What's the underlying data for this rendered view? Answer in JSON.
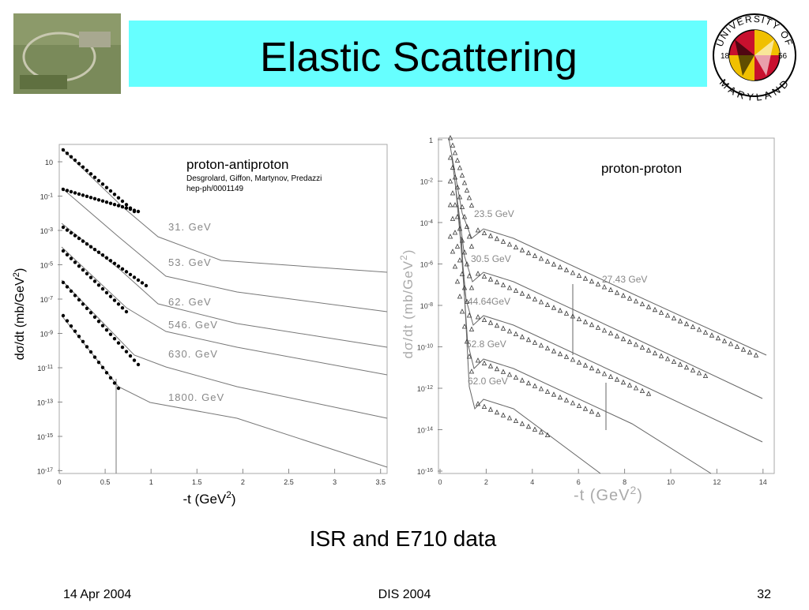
{
  "header": {
    "title": "Elastic Scattering",
    "logo": {
      "top": "UNIVERSITY OF",
      "bottom": "MARYLAND",
      "left": "18",
      "right": "56"
    }
  },
  "left_plot": {
    "heading": "proton-antiproton",
    "authors": "Desgrolard, Giffon, Martynov, Predazzi",
    "reference": "hep-ph/0001149",
    "y_label": "dσ/dt (mb/GeV",
    "y_label_sup": "2",
    "y_label_end": ")",
    "x_label": "-t (GeV",
    "x_label_sup": "2",
    "x_label_end": ")",
    "curve_labels": [
      "31. GeV",
      "53. GeV",
      "62. GeV",
      "546. GeV",
      "630. GeV",
      "1800. GeV"
    ],
    "yticks": [
      {
        "base": "10",
        "exp": ""
      },
      {
        "base": "10",
        "exp": "-1"
      },
      {
        "base": "10",
        "exp": "-3"
      },
      {
        "base": "10",
        "exp": "-5"
      },
      {
        "base": "10",
        "exp": "-7"
      },
      {
        "base": "10",
        "exp": "-9"
      },
      {
        "base": "10",
        "exp": "-11"
      },
      {
        "base": "10",
        "exp": "-13"
      },
      {
        "base": "10",
        "exp": "-15"
      },
      {
        "base": "10",
        "exp": "-17"
      }
    ],
    "xticks": [
      "0",
      "0.5",
      "1",
      "1.5",
      "2",
      "2.5",
      "3",
      "3.5"
    ]
  },
  "right_plot": {
    "heading": "proton-proton",
    "y_label": "dσ/dt (mb/GeV",
    "y_label_sup": "2",
    "y_label_end": ")",
    "x_label": "-t (GeV",
    "x_label_sup": "2",
    "x_label_end": ")",
    "curve_labels": [
      "23.5 GeV",
      "30.5 GeV",
      "44.64GeV",
      "52.8 GeV",
      "62.0 GeV",
      "27.43 GeV"
    ],
    "yticks": [
      {
        "base": "1",
        "exp": ""
      },
      {
        "base": "10",
        "exp": "-2"
      },
      {
        "base": "10",
        "exp": "-4"
      },
      {
        "base": "10",
        "exp": "-6"
      },
      {
        "base": "10",
        "exp": "-8"
      },
      {
        "base": "10",
        "exp": "-10"
      },
      {
        "base": "10",
        "exp": "-12"
      },
      {
        "base": "10",
        "exp": "-14"
      },
      {
        "base": "10",
        "exp": "-16"
      }
    ],
    "xticks": [
      "0",
      "2",
      "4",
      "6",
      "8",
      "10",
      "12",
      "14"
    ]
  },
  "caption": "ISR and E710 data",
  "footer": {
    "date": "14 Apr 2004",
    "event": "DIS 2004",
    "page": "32"
  }
}
